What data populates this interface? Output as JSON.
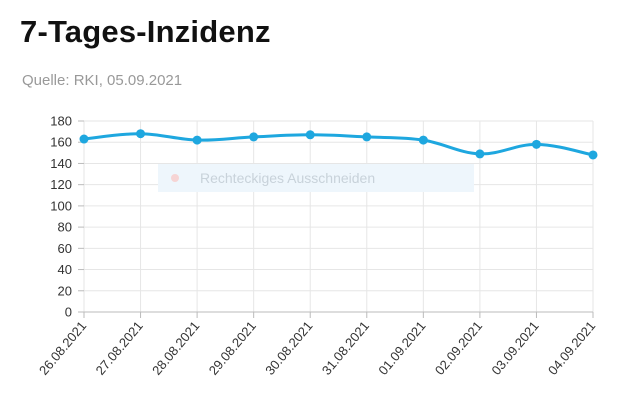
{
  "header": {
    "title": "7-Tages-Inzidenz",
    "source": "Quelle: RKI, 05.09.2021"
  },
  "overlay": {
    "label": "Rechteckiges Ausschneiden"
  },
  "colors": {
    "line": "#1ea7df",
    "grid": "#e6e6e6",
    "overlay_bg": "#eef6fc"
  },
  "chart_data": {
    "type": "line",
    "title": "7-Tages-Inzidenz",
    "categories": [
      "26.08.2021",
      "27.08.2021",
      "28.08.2021",
      "29.08.2021",
      "30.08.2021",
      "31.08.2021",
      "01.09.2021",
      "02.09.2021",
      "03.09.2021",
      "04.09.2021"
    ],
    "series": [
      {
        "values": [
          163,
          168,
          162,
          165,
          167,
          165,
          162,
          149,
          158,
          148
        ]
      }
    ],
    "ylim": [
      0,
      180
    ],
    "yticks": [
      0,
      20,
      40,
      60,
      80,
      100,
      120,
      140,
      160,
      180
    ],
    "grid": true,
    "legend": "none"
  }
}
